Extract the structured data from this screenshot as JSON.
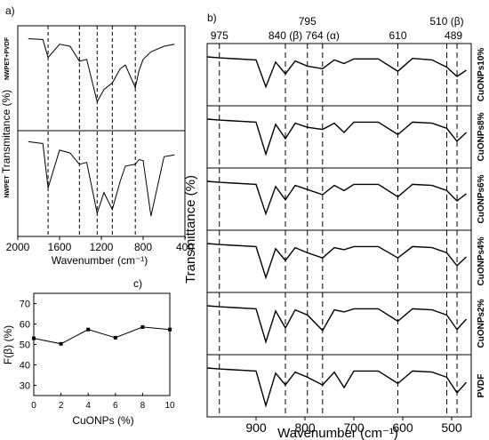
{
  "chart_data": [
    {
      "panel": "a)",
      "type": "line",
      "xlabel": "Wavenumber (cm⁻¹)",
      "ylabel": "Transmitance (%)",
      "xlim": [
        2000,
        400
      ],
      "xticks": [
        2000,
        1600,
        1200,
        800,
        400
      ],
      "reference_lines": [
        1710,
        1410,
        1240,
        1095,
        875
      ],
      "series": [
        {
          "name": "NWPET+PVDF",
          "x": [
            1900,
            1760,
            1710,
            1600,
            1500,
            1410,
            1340,
            1240,
            1175,
            1095,
            1020,
            970,
            875,
            840,
            800,
            725,
            600,
            500
          ],
          "y": [
            92,
            91,
            72,
            86,
            84,
            68,
            70,
            25,
            38,
            45,
            60,
            64,
            40,
            58,
            70,
            78,
            84,
            86
          ]
        },
        {
          "name": "NWPET",
          "x": [
            1900,
            1760,
            1710,
            1600,
            1500,
            1410,
            1340,
            1240,
            1175,
            1095,
            1020,
            970,
            875,
            840,
            800,
            725,
            600,
            500
          ],
          "y": [
            94,
            92,
            45,
            85,
            82,
            70,
            72,
            18,
            40,
            22,
            52,
            68,
            70,
            75,
            74,
            15,
            78,
            80
          ]
        }
      ]
    },
    {
      "panel": "b)",
      "type": "line",
      "xlabel": "Wavenumber (cm⁻¹)",
      "ylabel": "Transmittance (%)",
      "xlim": [
        1000,
        460
      ],
      "xticks": [
        900,
        800,
        700,
        600,
        500
      ],
      "band_lines": [
        {
          "x": 975,
          "label": "975"
        },
        {
          "x": 840,
          "label": "840 (β)"
        },
        {
          "x": 795,
          "label": "795"
        },
        {
          "x": 764,
          "label": "764 (α)"
        },
        {
          "x": 610,
          "label": "610"
        },
        {
          "x": 510,
          "label": "510 (β)"
        },
        {
          "x": 489,
          "label": "489"
        }
      ],
      "series": [
        {
          "name": "CuONPs10%",
          "x": [
            1000,
            975,
            900,
            880,
            860,
            840,
            820,
            795,
            764,
            740,
            720,
            700,
            650,
            610,
            580,
            540,
            510,
            489,
            470
          ],
          "y": [
            88,
            86,
            82,
            30,
            78,
            55,
            80,
            70,
            65,
            82,
            75,
            84,
            84,
            60,
            85,
            82,
            68,
            50,
            62
          ]
        },
        {
          "name": "CuONPs8%",
          "x": [
            1000,
            975,
            900,
            880,
            860,
            840,
            820,
            795,
            764,
            740,
            720,
            700,
            650,
            610,
            580,
            540,
            510,
            489,
            470
          ],
          "y": [
            88,
            86,
            82,
            20,
            78,
            50,
            80,
            72,
            68,
            80,
            62,
            82,
            82,
            58,
            82,
            80,
            70,
            45,
            62
          ]
        },
        {
          "name": "CuONPs6%",
          "x": [
            1000,
            975,
            900,
            880,
            860,
            840,
            820,
            795,
            764,
            740,
            720,
            700,
            650,
            610,
            580,
            540,
            510,
            489,
            470
          ],
          "y": [
            88,
            86,
            82,
            25,
            78,
            52,
            80,
            72,
            62,
            80,
            70,
            82,
            82,
            58,
            82,
            80,
            70,
            50,
            64
          ]
        },
        {
          "name": "CuONPs4%",
          "x": [
            1000,
            975,
            900,
            880,
            860,
            840,
            820,
            795,
            764,
            740,
            720,
            700,
            650,
            610,
            580,
            540,
            510,
            489,
            470
          ],
          "y": [
            88,
            86,
            82,
            22,
            78,
            55,
            80,
            70,
            60,
            80,
            76,
            82,
            82,
            60,
            82,
            80,
            70,
            45,
            62
          ]
        },
        {
          "name": "CuONPs2%",
          "x": [
            1000,
            975,
            900,
            880,
            860,
            840,
            820,
            795,
            764,
            740,
            720,
            700,
            650,
            610,
            580,
            540,
            510,
            489,
            470
          ],
          "y": [
            88,
            86,
            82,
            18,
            78,
            45,
            80,
            70,
            40,
            80,
            76,
            82,
            82,
            58,
            82,
            80,
            70,
            42,
            62
          ]
        },
        {
          "name": "PVDF",
          "x": [
            1000,
            975,
            900,
            880,
            860,
            840,
            820,
            795,
            764,
            740,
            720,
            700,
            650,
            610,
            580,
            540,
            510,
            489,
            470
          ],
          "y": [
            88,
            86,
            82,
            15,
            78,
            55,
            80,
            70,
            55,
            80,
            50,
            82,
            82,
            58,
            82,
            80,
            70,
            40,
            60
          ]
        }
      ]
    },
    {
      "panel": "c)",
      "type": "line",
      "xlabel": "CuONPs (%)",
      "ylabel": "F(β) (%)",
      "xlim": [
        0,
        10
      ],
      "ylim": [
        25,
        75
      ],
      "xticks": [
        0,
        2,
        4,
        6,
        8,
        10
      ],
      "yticks": [
        30,
        40,
        50,
        60,
        70
      ],
      "x": [
        0,
        2,
        4,
        6,
        8,
        10
      ],
      "values": [
        53,
        50.3,
        57.3,
        53.3,
        58.5,
        57.3
      ]
    }
  ]
}
